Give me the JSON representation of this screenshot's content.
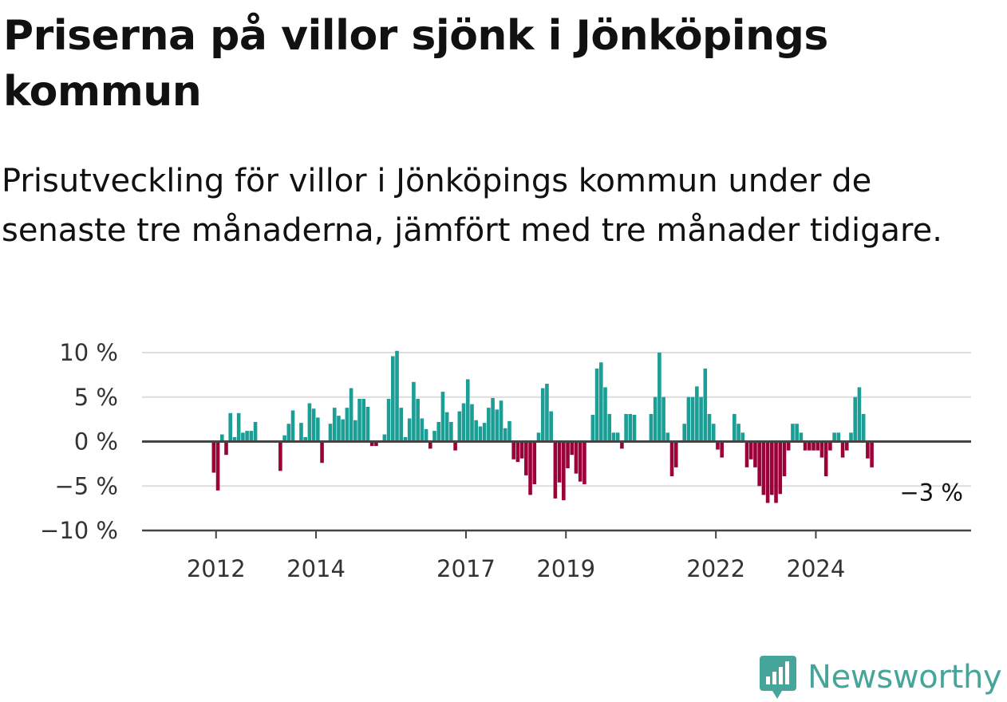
{
  "title": "Priserna på villor sjönk i Jönköpings kommun",
  "subtitle": "Prisutveckling för villor i Jönköpings kommun under de senaste tre månaderna, jämfört med tre månader tidigare.",
  "brand": {
    "name": "Newsworthy",
    "icon": "newsworthy-logo-icon",
    "color": "#46a59a"
  },
  "colors": {
    "positive": "#1a9e95",
    "negative": "#9c0039",
    "grid": "#dddddd",
    "axis": "#444444"
  },
  "chart_data": {
    "type": "bar",
    "title": "",
    "xlabel": "",
    "ylabel": "",
    "ylim": [
      -10,
      10
    ],
    "yticks": [
      10,
      5,
      0,
      -5,
      -10
    ],
    "ytick_labels": [
      "10 %",
      "5 %",
      "0 %",
      "−5 %",
      "−10 %"
    ],
    "x_tick_labels": [
      "2012",
      "2014",
      "2017",
      "2019",
      "2022",
      "2024"
    ],
    "x_start": "2011-05",
    "frequency": "monthly",
    "grid": true,
    "end_label": "−3 %",
    "series": [
      {
        "values": [
          0,
          0,
          0,
          0,
          0,
          0,
          0,
          -3.5,
          -5.5,
          0.8,
          -1.5,
          3.2,
          0.5,
          3.2,
          1,
          1.2,
          1.2,
          2.2,
          0,
          0,
          0,
          0,
          0,
          -3.3,
          0.7,
          2,
          3.5,
          0,
          2.1,
          0.5,
          4.3,
          3.7,
          2.7,
          -2.4,
          0,
          2,
          3.8,
          2.9,
          2.5,
          3.8,
          6,
          2.4,
          4.8,
          4.8,
          3.9,
          -0.5,
          -0.5,
          0,
          0.8,
          4.8,
          9.6,
          10.2,
          3.8,
          0.5,
          2.6,
          6.7,
          4.8,
          2.6,
          1.4,
          -0.8,
          1.2,
          2.2,
          5.6,
          3.3,
          2.2,
          -1,
          3.4,
          4.3,
          7,
          4.2,
          2.4,
          1.7,
          2.1,
          3.8,
          4.9,
          3.6,
          4.6,
          1.5,
          2.3,
          -2,
          -2.3,
          -1.9,
          -3.8,
          -6,
          -4.8,
          1,
          6,
          6.5,
          3.4,
          -6.4,
          -4.6,
          -6.6,
          -3,
          -1.5,
          -3.6,
          -4.5,
          -4.8,
          0,
          3,
          8.2,
          8.9,
          6.1,
          3.1,
          1,
          1,
          -0.8,
          3.1,
          3.1,
          3,
          0,
          0,
          0,
          3.1,
          5,
          10,
          5,
          1,
          -3.9,
          -2.9,
          0,
          2,
          5,
          5,
          6.2,
          5,
          8.2,
          3.1,
          2,
          -0.9,
          -1.8,
          0,
          0,
          3.1,
          2,
          1,
          -2.9,
          -2,
          -2.9,
          -5,
          -6,
          -6.9,
          -6,
          -6.9,
          -5.9,
          -3.9,
          -1,
          2,
          2,
          1,
          -1,
          -1,
          -1,
          -1,
          -1.8,
          -3.9,
          -1,
          1,
          1,
          -1.8,
          -1,
          1,
          5,
          6.1,
          3.1,
          -1.9,
          -2.9
        ]
      }
    ]
  }
}
